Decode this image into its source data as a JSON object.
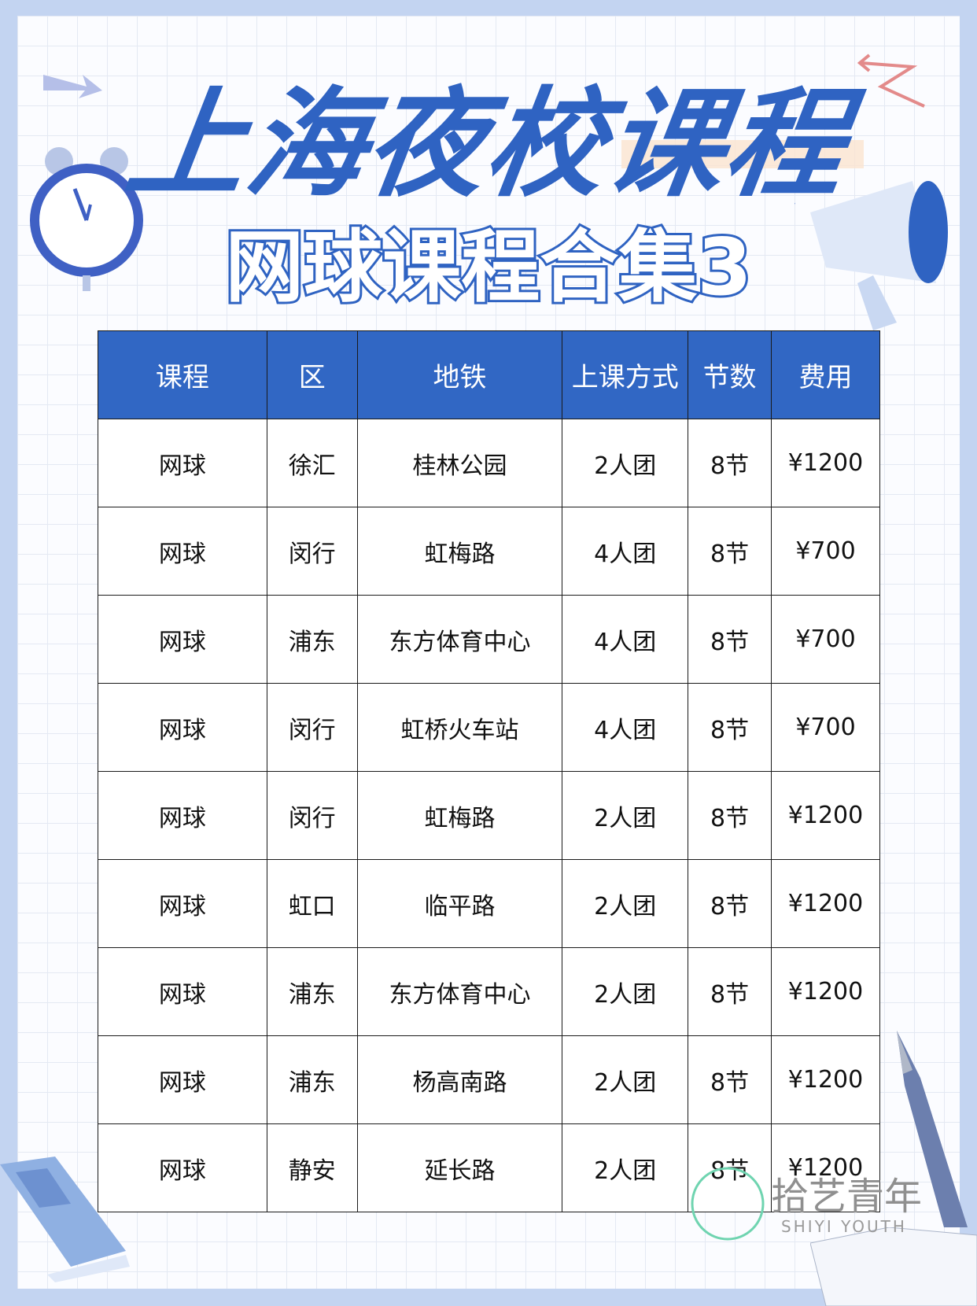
{
  "title": "上海夜校课程",
  "subtitle": "网球课程合集3",
  "table": {
    "headers": [
      "课程",
      "区",
      "地铁",
      "上课方式",
      "节数",
      "费用"
    ],
    "rows": [
      [
        "网球",
        "徐汇",
        "桂林公园",
        "2人团",
        "8节",
        "¥1200"
      ],
      [
        "网球",
        "闵行",
        "虹梅路",
        "4人团",
        "8节",
        "¥700"
      ],
      [
        "网球",
        "浦东",
        "东方体育中心",
        "4人团",
        "8节",
        "¥700"
      ],
      [
        "网球",
        "闵行",
        "虹桥火车站",
        "4人团",
        "8节",
        "¥700"
      ],
      [
        "网球",
        "闵行",
        "虹梅路",
        "2人团",
        "8节",
        "¥1200"
      ],
      [
        "网球",
        "虹口",
        "临平路",
        "2人团",
        "8节",
        "¥1200"
      ],
      [
        "网球",
        "浦东",
        "东方体育中心",
        "2人团",
        "8节",
        "¥1200"
      ],
      [
        "网球",
        "浦东",
        "杨高南路",
        "2人团",
        "8节",
        "¥1200"
      ],
      [
        "网球",
        "静安",
        "延长路",
        "2人团",
        "8节",
        "¥1200"
      ]
    ]
  },
  "watermark": {
    "logo_char": "拾艺",
    "name": "拾艺青年",
    "english": "SHIYI YOUTH"
  },
  "colors": {
    "accent": "#3167c4",
    "frame": "#c3d4f1",
    "logo_green": "#6fd4b0"
  }
}
